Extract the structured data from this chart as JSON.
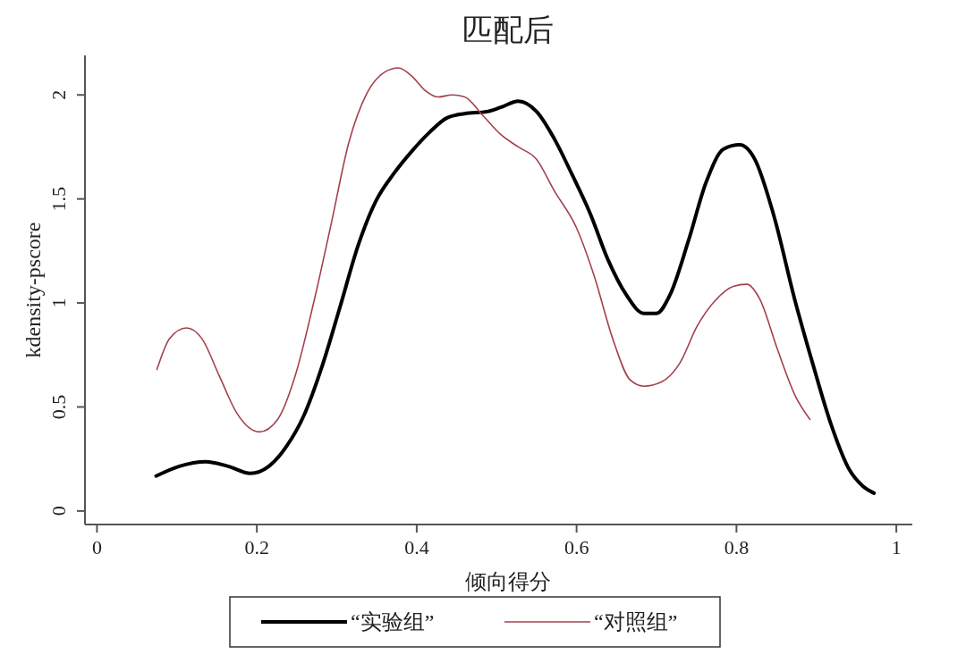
{
  "chart_data": {
    "type": "line",
    "title": "匹配后",
    "xlabel": "倾向得分",
    "ylabel": "kdensity-pscore",
    "xlim": [
      -0.015,
      1.02
    ],
    "ylim": [
      -0.065,
      2.19
    ],
    "xticks": [
      0,
      0.2,
      0.4,
      0.6,
      0.8,
      1
    ],
    "yticks": [
      0,
      0.5,
      1,
      1.5,
      2
    ],
    "grid": false,
    "legend": "bottom",
    "marker": "none",
    "line_style": "solid",
    "series": [
      {
        "name": "“实验组”",
        "color": "#000000",
        "x": [
          0.074,
          0.103,
          0.136,
          0.164,
          0.192,
          0.215,
          0.237,
          0.259,
          0.282,
          0.304,
          0.327,
          0.349,
          0.371,
          0.394,
          0.416,
          0.438,
          0.46,
          0.488,
          0.505,
          0.527,
          0.55,
          0.572,
          0.594,
          0.617,
          0.639,
          0.662,
          0.684,
          0.7,
          0.717,
          0.74,
          0.762,
          0.784,
          0.804,
          0.823,
          0.846,
          0.874,
          0.896,
          0.918,
          0.941,
          0.958,
          0.972
        ],
        "values": [
          0.168,
          0.215,
          0.237,
          0.215,
          0.181,
          0.215,
          0.31,
          0.46,
          0.7,
          0.98,
          1.28,
          1.49,
          1.62,
          1.73,
          1.82,
          1.89,
          1.91,
          1.92,
          1.94,
          1.97,
          1.92,
          1.79,
          1.62,
          1.43,
          1.21,
          1.04,
          0.95,
          0.95,
          1.04,
          1.3,
          1.58,
          1.74,
          1.76,
          1.69,
          1.43,
          1.0,
          0.7,
          0.42,
          0.2,
          0.12,
          0.086
        ]
      },
      {
        "name": "“对照组”",
        "color": "#a3404f",
        "x": [
          0.075,
          0.091,
          0.112,
          0.131,
          0.153,
          0.175,
          0.203,
          0.226,
          0.248,
          0.271,
          0.293,
          0.315,
          0.338,
          0.36,
          0.377,
          0.394,
          0.411,
          0.427,
          0.444,
          0.46,
          0.483,
          0.505,
          0.527,
          0.55,
          0.572,
          0.6,
          0.622,
          0.645,
          0.667,
          0.684,
          0.706,
          0.729,
          0.751,
          0.773,
          0.796,
          0.813,
          0.829,
          0.851,
          0.874,
          0.892
        ],
        "values": [
          0.68,
          0.83,
          0.88,
          0.83,
          0.65,
          0.47,
          0.38,
          0.44,
          0.65,
          1.0,
          1.38,
          1.77,
          2.01,
          2.11,
          2.13,
          2.09,
          2.02,
          1.99,
          2.0,
          1.99,
          1.9,
          1.81,
          1.75,
          1.69,
          1.54,
          1.36,
          1.13,
          0.83,
          0.63,
          0.6,
          0.62,
          0.71,
          0.89,
          1.01,
          1.08,
          1.09,
          1.02,
          0.78,
          0.55,
          0.44
        ]
      }
    ]
  }
}
